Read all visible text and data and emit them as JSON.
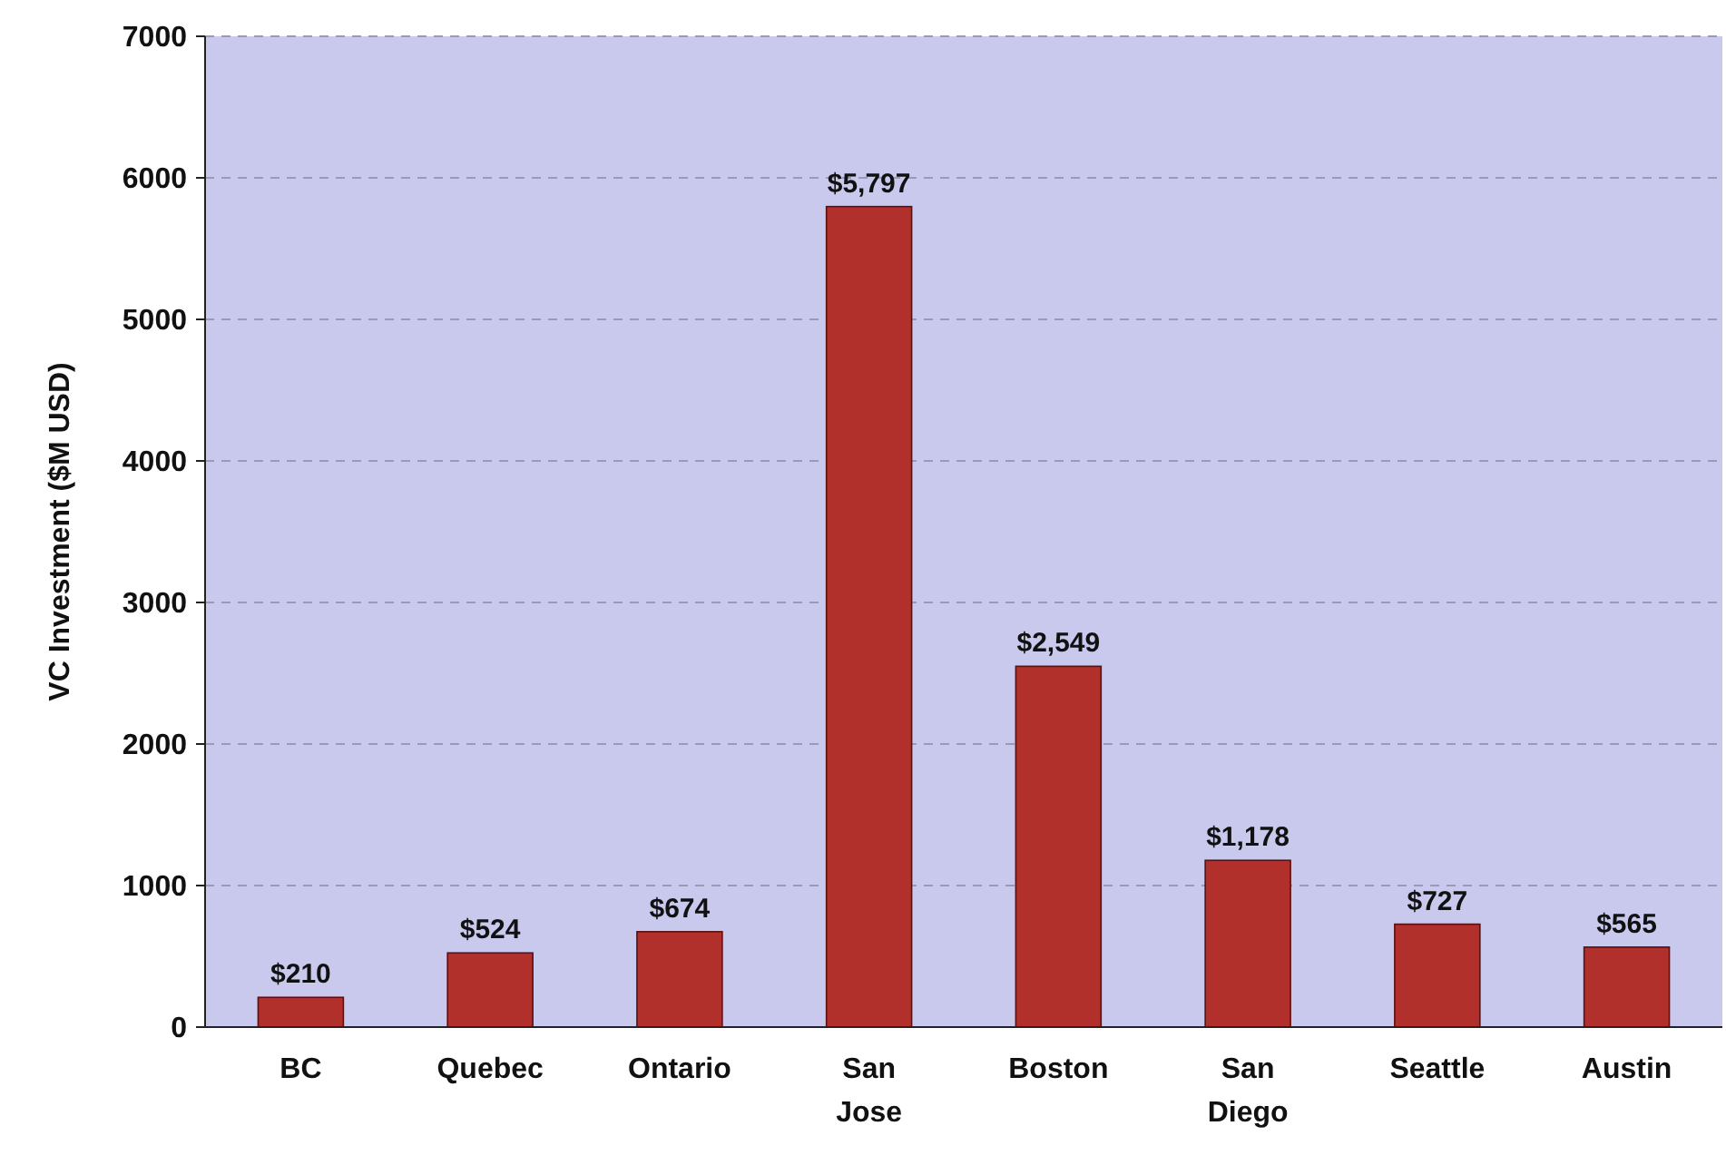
{
  "chart_data": {
    "type": "bar",
    "ylabel": "VC Investment ($M USD)",
    "categories": [
      "BC",
      "Quebec",
      "Ontario",
      "San Jose",
      "Boston",
      "San Diego",
      "Seattle",
      "Austin"
    ],
    "values": [
      210,
      524,
      674,
      5797,
      2549,
      1178,
      727,
      565
    ],
    "value_labels": [
      "$210",
      "$524",
      "$674",
      "$5,797",
      "$2,549",
      "$1,178",
      "$727",
      "$565"
    ],
    "color": "#b2302b",
    "ylim": [
      0,
      7000
    ],
    "yticks": [
      0,
      1000,
      2000,
      3000,
      4000,
      5000,
      6000,
      7000
    ],
    "grid": "y"
  }
}
